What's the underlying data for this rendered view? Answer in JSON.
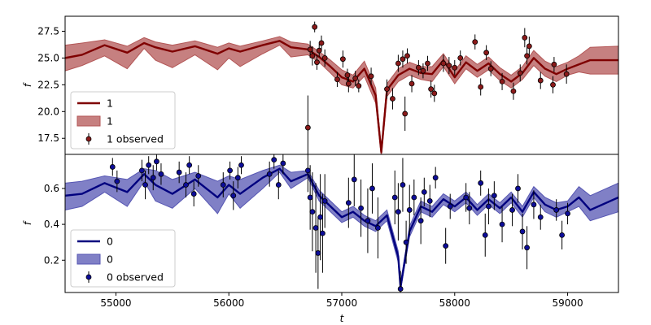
{
  "chart_data": [
    {
      "type": "line",
      "panel": "top",
      "ylabel": "f",
      "xlabel": "",
      "xlim": [
        54550,
        59450
      ],
      "ylim": [
        16.0,
        28.9
      ],
      "yticks": [
        17.5,
        20.0,
        22.5,
        25.0,
        27.5
      ],
      "ytick_labels": [
        "17.5",
        "20.0",
        "22.5",
        "25.0",
        "27.5"
      ],
      "legend_position": "lower-left",
      "legend": [
        "1",
        "1",
        "1 observed"
      ],
      "colors": {
        "line": "#7f0000",
        "band": "#b35656",
        "points": "#8b1a1a"
      },
      "series": [
        {
          "name": "1",
          "kind": "model-line",
          "x": [
            54550,
            54700,
            54900,
            55100,
            55250,
            55350,
            55500,
            55700,
            55900,
            56000,
            56100,
            56300,
            56450,
            56550,
            56700,
            56800,
            56900,
            57000,
            57100,
            57200,
            57300,
            57350,
            57400,
            57500,
            57600,
            57700,
            57800,
            57900,
            58000,
            58100,
            58200,
            58300,
            58400,
            58500,
            58600,
            58700,
            58800,
            58900,
            59000,
            59100,
            59200,
            59450
          ],
          "y": [
            25.0,
            25.3,
            26.2,
            25.5,
            26.4,
            26.0,
            25.6,
            26.1,
            25.4,
            25.9,
            25.6,
            26.2,
            26.6,
            26.0,
            25.8,
            25.1,
            24.2,
            23.2,
            22.8,
            24.0,
            21.5,
            16.2,
            22.0,
            23.4,
            24.0,
            23.6,
            23.5,
            24.8,
            23.2,
            24.6,
            23.8,
            24.5,
            23.5,
            22.8,
            23.6,
            25.0,
            24.0,
            23.5,
            24.0,
            24.4,
            24.8,
            24.8
          ]
        },
        {
          "name": "1",
          "kind": "uncertainty-band",
          "x": [
            54550,
            54700,
            54900,
            55100,
            55250,
            55350,
            55500,
            55700,
            55900,
            56000,
            56100,
            56300,
            56450,
            56550,
            56700,
            56800,
            56900,
            57000,
            57100,
            57200,
            57300,
            57350,
            57400,
            57500,
            57600,
            57700,
            57800,
            57900,
            58000,
            58100,
            58200,
            58300,
            58400,
            58500,
            58600,
            58700,
            58800,
            58900,
            59000,
            59100,
            59200,
            59450
          ],
          "lower": [
            23.8,
            24.3,
            25.2,
            24.0,
            25.9,
            24.8,
            24.1,
            25.3,
            23.9,
            25.0,
            24.2,
            25.4,
            26.2,
            25.1,
            25.3,
            24.6,
            23.6,
            22.5,
            22.2,
            23.3,
            20.8,
            15.8,
            21.4,
            22.8,
            23.4,
            23.0,
            22.8,
            24.2,
            22.6,
            24.0,
            23.2,
            23.9,
            22.9,
            22.2,
            23.0,
            24.3,
            23.3,
            22.8,
            23.4,
            23.7,
            23.5,
            23.5
          ],
          "upper": [
            26.2,
            26.4,
            26.7,
            26.1,
            26.9,
            26.5,
            26.2,
            26.6,
            26.0,
            26.4,
            26.1,
            26.6,
            27.0,
            26.5,
            26.3,
            25.6,
            24.8,
            23.9,
            23.4,
            24.7,
            22.2,
            16.6,
            22.6,
            24.0,
            24.6,
            24.2,
            24.2,
            25.4,
            23.8,
            25.2,
            24.4,
            25.1,
            24.1,
            23.4,
            24.2,
            25.7,
            24.7,
            24.2,
            24.6,
            25.2,
            26.0,
            26.1
          ]
        },
        {
          "name": "1 observed",
          "kind": "observed-points",
          "x": [
            56700,
            56720,
            56740,
            56760,
            56780,
            56800,
            56820,
            56850,
            56960,
            57010,
            57050,
            57060,
            57120,
            57150,
            57260,
            57400,
            57450,
            57500,
            57540,
            57560,
            57580,
            57620,
            57680,
            57720,
            57760,
            57790,
            57820,
            57900,
            57950,
            58000,
            58050,
            58180,
            58230,
            58280,
            58320,
            58420,
            58520,
            58580,
            58620,
            58640,
            58660,
            58760,
            58870,
            58880,
            58990
          ],
          "y": [
            18.5,
            25.8,
            25.2,
            27.9,
            24.6,
            25.7,
            26.4,
            25.0,
            23.0,
            24.9,
            23.4,
            22.6,
            23.1,
            22.4,
            23.3,
            22.1,
            21.2,
            24.5,
            24.9,
            19.8,
            25.2,
            22.6,
            24.1,
            23.8,
            24.5,
            22.1,
            21.7,
            24.5,
            24.3,
            24.1,
            25.0,
            26.5,
            22.3,
            25.5,
            24.0,
            22.8,
            21.9,
            23.6,
            26.9,
            25.2,
            26.1,
            22.9,
            22.5,
            24.4,
            23.5
          ],
          "yerr": [
            3.0,
            0.8,
            0.9,
            0.5,
            0.7,
            0.6,
            0.7,
            0.8,
            0.7,
            0.8,
            0.6,
            0.8,
            0.7,
            0.6,
            0.8,
            0.9,
            1.0,
            0.8,
            0.8,
            1.6,
            0.7,
            0.8,
            0.7,
            0.7,
            0.7,
            0.8,
            0.8,
            0.8,
            0.8,
            0.7,
            0.7,
            0.7,
            0.8,
            0.7,
            0.7,
            0.8,
            0.8,
            0.8,
            0.9,
            0.8,
            0.9,
            0.8,
            0.8,
            0.7,
            0.9
          ]
        }
      ]
    },
    {
      "type": "line",
      "panel": "bottom",
      "ylabel": "f",
      "xlabel": "t",
      "xlim": [
        54550,
        59450
      ],
      "ylim": [
        0.02,
        0.79
      ],
      "yticks": [
        0.2,
        0.4,
        0.6
      ],
      "ytick_labels": [
        "0.2",
        "0.4",
        "0.6"
      ],
      "xticks": [
        55000,
        56000,
        57000,
        58000,
        59000
      ],
      "xtick_labels": [
        "55000",
        "56000",
        "57000",
        "58000",
        "59000"
      ],
      "legend_position": "lower-left",
      "legend": [
        "0",
        "0",
        "0 observed"
      ],
      "colors": {
        "line": "#00007f",
        "band": "#5656b3",
        "points": "#0d0d99"
      },
      "series": [
        {
          "name": "0",
          "kind": "model-line",
          "x": [
            54550,
            54700,
            54900,
            55100,
            55250,
            55350,
            55500,
            55700,
            55900,
            56000,
            56100,
            56300,
            56450,
            56550,
            56700,
            56800,
            56900,
            57000,
            57100,
            57200,
            57300,
            57400,
            57500,
            57520,
            57600,
            57700,
            57800,
            57900,
            58000,
            58100,
            58200,
            58300,
            58400,
            58500,
            58600,
            58700,
            58800,
            58900,
            59000,
            59100,
            59200,
            59450
          ],
          "y": [
            0.56,
            0.57,
            0.63,
            0.58,
            0.68,
            0.62,
            0.57,
            0.65,
            0.55,
            0.62,
            0.57,
            0.66,
            0.71,
            0.64,
            0.68,
            0.56,
            0.5,
            0.44,
            0.47,
            0.42,
            0.39,
            0.45,
            0.22,
            0.05,
            0.36,
            0.5,
            0.47,
            0.54,
            0.5,
            0.55,
            0.48,
            0.54,
            0.49,
            0.55,
            0.47,
            0.58,
            0.51,
            0.48,
            0.5,
            0.55,
            0.48,
            0.55
          ]
        },
        {
          "name": "0",
          "kind": "uncertainty-band",
          "x": [
            54550,
            54700,
            54900,
            55100,
            55250,
            55350,
            55500,
            55700,
            55900,
            56000,
            56100,
            56300,
            56450,
            56550,
            56700,
            56800,
            56900,
            57000,
            57100,
            57200,
            57300,
            57400,
            57500,
            57520,
            57600,
            57700,
            57800,
            57900,
            58000,
            58100,
            58200,
            58300,
            58400,
            58500,
            58600,
            58700,
            58800,
            58900,
            59000,
            59100,
            59200,
            59450
          ],
          "lower": [
            0.48,
            0.5,
            0.58,
            0.5,
            0.64,
            0.53,
            0.49,
            0.6,
            0.46,
            0.57,
            0.49,
            0.6,
            0.69,
            0.6,
            0.66,
            0.53,
            0.47,
            0.41,
            0.44,
            0.39,
            0.36,
            0.42,
            0.19,
            0.03,
            0.33,
            0.47,
            0.44,
            0.51,
            0.47,
            0.52,
            0.45,
            0.51,
            0.46,
            0.52,
            0.44,
            0.55,
            0.47,
            0.44,
            0.47,
            0.5,
            0.42,
            0.47
          ],
          "upper": [
            0.63,
            0.64,
            0.67,
            0.65,
            0.71,
            0.7,
            0.65,
            0.69,
            0.64,
            0.67,
            0.65,
            0.7,
            0.73,
            0.69,
            0.7,
            0.59,
            0.53,
            0.47,
            0.5,
            0.45,
            0.42,
            0.48,
            0.25,
            0.07,
            0.39,
            0.53,
            0.5,
            0.57,
            0.53,
            0.58,
            0.51,
            0.57,
            0.52,
            0.58,
            0.5,
            0.61,
            0.55,
            0.52,
            0.53,
            0.61,
            0.56,
            0.63
          ]
        },
        {
          "name": "0 observed",
          "kind": "observed-points",
          "x": [
            54970,
            55010,
            55230,
            55260,
            55290,
            55330,
            55360,
            55400,
            55560,
            55620,
            55650,
            55690,
            55730,
            55950,
            56010,
            56040,
            56080,
            56110,
            56360,
            56400,
            56440,
            56480,
            56700,
            56720,
            56740,
            56770,
            56790,
            56810,
            56830,
            56850,
            57060,
            57110,
            57170,
            57230,
            57270,
            57320,
            57470,
            57500,
            57520,
            57540,
            57570,
            57600,
            57640,
            57700,
            57730,
            57780,
            57830,
            57920,
            57960,
            58100,
            58130,
            58230,
            58270,
            58300,
            58350,
            58420,
            58510,
            58560,
            58600,
            58640,
            58700,
            58760,
            58900,
            58950,
            59000
          ],
          "y": [
            0.72,
            0.64,
            0.7,
            0.62,
            0.73,
            0.66,
            0.75,
            0.68,
            0.69,
            0.62,
            0.73,
            0.57,
            0.67,
            0.62,
            0.7,
            0.56,
            0.66,
            0.73,
            0.68,
            0.76,
            0.62,
            0.74,
            0.7,
            0.55,
            0.47,
            0.38,
            0.24,
            0.44,
            0.35,
            0.53,
            0.52,
            0.65,
            0.49,
            0.42,
            0.6,
            0.38,
            0.55,
            0.47,
            0.04,
            0.62,
            0.3,
            0.48,
            0.55,
            0.42,
            0.58,
            0.53,
            0.66,
            0.28,
            0.5,
            0.55,
            0.49,
            0.63,
            0.34,
            0.5,
            0.56,
            0.4,
            0.48,
            0.6,
            0.36,
            0.27,
            0.51,
            0.44,
            0.48,
            0.34,
            0.46
          ],
          "yerr": [
            0.05,
            0.06,
            0.06,
            0.08,
            0.05,
            0.07,
            0.05,
            0.06,
            0.06,
            0.07,
            0.05,
            0.07,
            0.06,
            0.07,
            0.05,
            0.08,
            0.06,
            0.05,
            0.07,
            0.05,
            0.08,
            0.06,
            0.12,
            0.18,
            0.22,
            0.25,
            0.2,
            0.24,
            0.22,
            0.15,
            0.14,
            0.15,
            0.16,
            0.18,
            0.14,
            0.17,
            0.15,
            0.16,
            0.1,
            0.15,
            0.12,
            0.14,
            0.1,
            0.13,
            0.08,
            0.09,
            0.06,
            0.1,
            0.07,
            0.08,
            0.09,
            0.07,
            0.12,
            0.1,
            0.08,
            0.1,
            0.09,
            0.08,
            0.1,
            0.12,
            0.08,
            0.07,
            0.06,
            0.08,
            0.06
          ]
        }
      ]
    }
  ]
}
